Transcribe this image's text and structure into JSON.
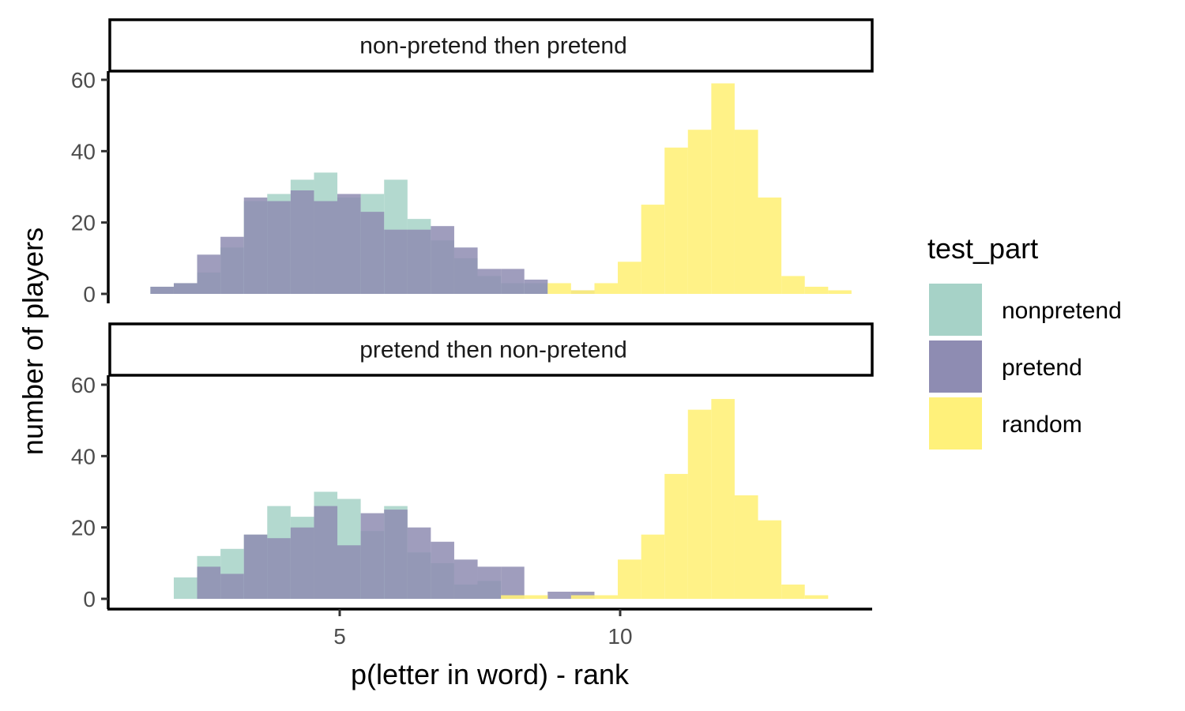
{
  "chart_data": {
    "type": "histogram",
    "title": "",
    "xlabel": "p(letter in word) - rank",
    "ylabel": "number of players",
    "xlim": [
      1.3,
      14.7
    ],
    "ylim": [
      0,
      60
    ],
    "xticks": [
      5,
      10
    ],
    "yticks": [
      0,
      20,
      40,
      60
    ],
    "bin_width": 0.4167,
    "grid": false,
    "legend": {
      "title": "test_part",
      "position": "right",
      "entries": [
        {
          "name": "nonpretend",
          "color": "#a6d2c7"
        },
        {
          "name": "pretend",
          "color": "#8e8cb2"
        },
        {
          "name": "random",
          "color": "#fff17a"
        }
      ]
    },
    "colors": {
      "nonpretend": "#a6d2c7",
      "pretend": "#8e8cb2",
      "random": "#fff17a",
      "overlap_nonpretend_pretend": "#687b9d",
      "overlap_pretend_random": "#c5b65f"
    },
    "panels": [
      {
        "label": "non-pretend then pretend",
        "bin_starts": [
          1.625,
          2.042,
          2.458,
          2.875,
          3.292,
          3.708,
          4.125,
          4.542,
          4.958,
          5.375,
          5.792,
          6.208,
          6.625,
          7.042,
          7.458,
          7.875,
          8.292,
          8.708,
          9.125,
          9.542,
          9.958,
          10.375,
          10.792,
          11.208,
          11.625,
          12.042,
          12.458,
          12.875,
          13.292,
          13.708
        ],
        "series": [
          {
            "name": "nonpretend",
            "values": [
              2,
              3,
              6,
              13,
              26,
              28,
              32,
              34,
              27,
              28,
              32,
              21,
              15,
              10,
              5,
              3,
              3,
              0,
              0,
              0,
              0,
              0,
              0,
              0,
              0,
              0,
              0,
              0,
              0,
              0
            ]
          },
          {
            "name": "pretend",
            "values": [
              2,
              3,
              11,
              16,
              27,
              26,
              29,
              26,
              28,
              23,
              18,
              18,
              19,
              13,
              7,
              7,
              4,
              0,
              1,
              0,
              0,
              0,
              0,
              0,
              0,
              0,
              0,
              0,
              0,
              0
            ]
          },
          {
            "name": "random",
            "values": [
              0,
              0,
              0,
              0,
              0,
              0,
              0,
              0,
              0,
              0,
              0,
              0,
              0,
              0,
              0,
              0,
              0,
              3,
              1,
              3,
              9,
              25,
              41,
              46,
              59,
              46,
              27,
              5,
              2,
              1
            ]
          }
        ]
      },
      {
        "label": "pretend then non-pretend",
        "bin_starts": [
          1.625,
          2.042,
          2.458,
          2.875,
          3.292,
          3.708,
          4.125,
          4.542,
          4.958,
          5.375,
          5.792,
          6.208,
          6.625,
          7.042,
          7.458,
          7.875,
          8.292,
          8.708,
          9.125,
          9.542,
          9.958,
          10.375,
          10.792,
          11.208,
          11.625,
          12.042,
          12.458,
          12.875,
          13.292,
          13.708
        ],
        "series": [
          {
            "name": "nonpretend",
            "values": [
              0,
              6,
              12,
              14,
              18,
              26,
              23,
              30,
              28,
              19,
              26,
              13,
              10,
              4,
              5,
              0,
              0,
              0,
              0,
              0,
              0,
              0,
              0,
              0,
              0,
              0,
              0,
              0,
              0,
              0
            ]
          },
          {
            "name": "pretend",
            "values": [
              0,
              0,
              9,
              7,
              18,
              17,
              20,
              26,
              15,
              24,
              25,
              20,
              16,
              11,
              9,
              9,
              0,
              2,
              2,
              0,
              0,
              0,
              0,
              0,
              0,
              0,
              0,
              0,
              0,
              0
            ]
          },
          {
            "name": "random",
            "values": [
              0,
              0,
              0,
              0,
              0,
              0,
              0,
              0,
              0,
              0,
              0,
              0,
              0,
              0,
              0,
              1,
              1,
              0,
              1,
              1,
              11,
              18,
              35,
              53,
              56,
              29,
              22,
              4,
              1,
              0
            ]
          }
        ]
      }
    ]
  }
}
